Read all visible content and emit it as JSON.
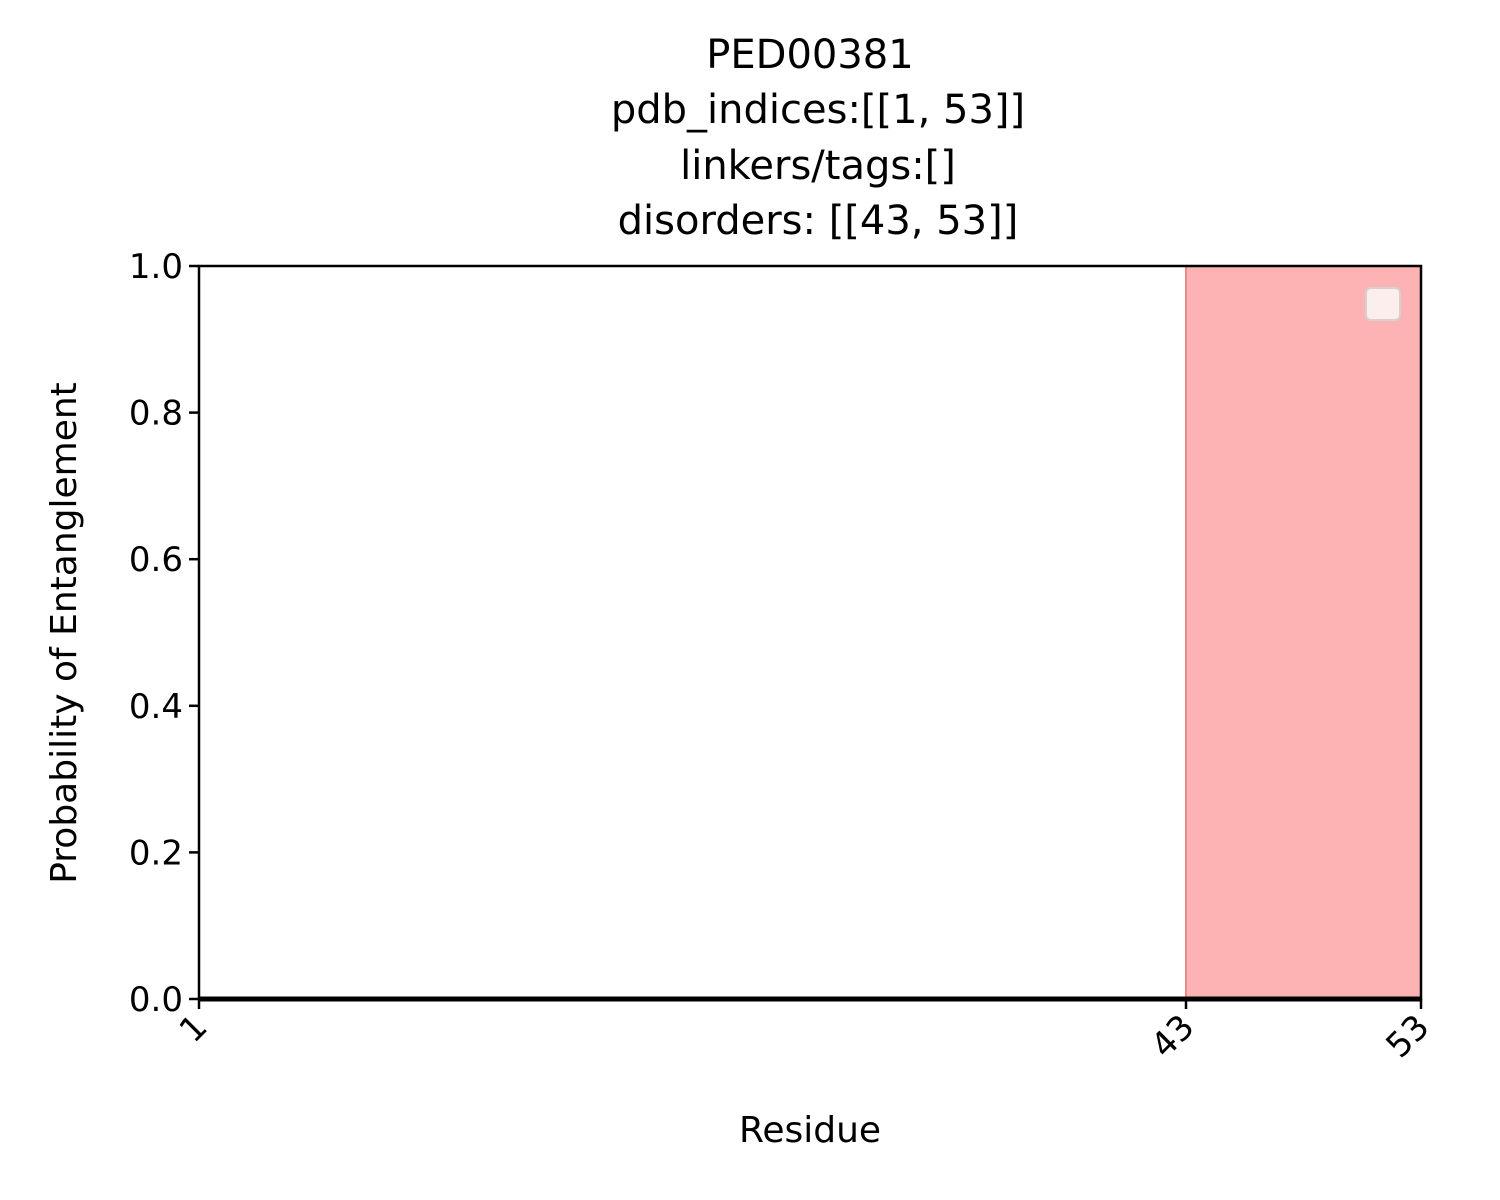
{
  "chart_data": {
    "type": "line",
    "title_lines": [
      "PED00381",
      "pdb_indices:[[1, 53]]",
      "linkers/tags:[]",
      "disorders: [[43, 53]]"
    ],
    "xlabel": "Residue",
    "ylabel": "Probability of Entanglement",
    "xlim": [
      1,
      53
    ],
    "ylim": [
      0,
      1
    ],
    "x_ticks": [
      1,
      43,
      53
    ],
    "y_ticks": [
      0.0,
      0.2,
      0.4,
      0.6,
      0.8,
      1.0
    ],
    "y_tick_labels": [
      "0.0",
      "0.2",
      "0.4",
      "0.6",
      "0.8",
      "1.0"
    ],
    "series": [
      {
        "x": [
          1,
          53
        ],
        "y": [
          0,
          0
        ],
        "color": "#000000"
      }
    ],
    "disorder_regions": [
      [
        43,
        53
      ]
    ],
    "disorder_color": "#fdb3b3",
    "legend": {
      "placement": "top-right",
      "entries": [
        ""
      ]
    },
    "grid": false
  }
}
